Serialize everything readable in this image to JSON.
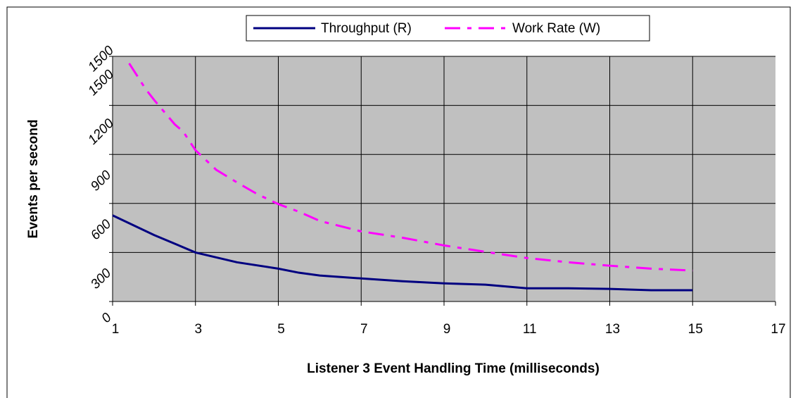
{
  "chart_data": {
    "type": "line",
    "x_label": "Listener 3 Event Handling Time (milliseconds)",
    "y_label": "Events per second",
    "xlim": [
      1,
      17
    ],
    "xticks": [
      1,
      3,
      5,
      7,
      9,
      11,
      13,
      15,
      17
    ],
    "ylim": [
      0,
      1500
    ],
    "yticks": [
      0,
      300,
      600,
      900,
      1200,
      1500,
      {
        "value": 1500,
        "label": "1500"
      }
    ],
    "grid": true,
    "legend": "top",
    "series": [
      {
        "name": "Throughput (R)",
        "color": "#000080",
        "dash": "solid",
        "x": [
          1,
          2,
          3,
          4,
          5,
          5.5,
          6,
          7,
          8,
          9,
          10,
          11,
          12,
          13,
          14,
          15
        ],
        "values": [
          527,
          407,
          300,
          240,
          201,
          176,
          159,
          141,
          124,
          111,
          103,
          81,
          81,
          77,
          69,
          69
        ]
      },
      {
        "name": "Work Rate (W)",
        "color": "#ff00ff",
        "dash": "dashdot",
        "x": [
          1.4,
          1.8,
          2,
          2.5,
          2.7,
          3,
          3.5,
          4,
          4.5,
          5,
          5.5,
          6,
          7,
          8,
          9,
          10,
          11,
          12,
          13,
          14,
          15
        ],
        "values": [
          1457,
          1299,
          1234,
          1084,
          1041,
          926,
          806,
          729,
          656,
          596,
          549,
          493,
          429,
          390,
          343,
          304,
          266,
          240,
          219,
          201,
          189
        ]
      }
    ]
  }
}
